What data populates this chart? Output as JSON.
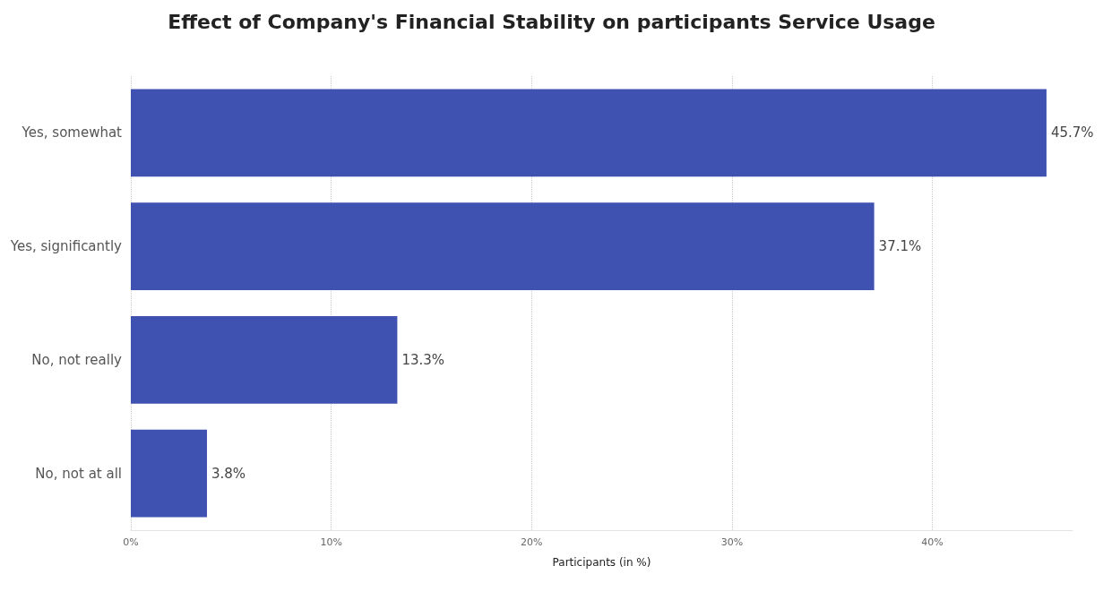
{
  "chart_data": {
    "type": "bar",
    "orientation": "horizontal",
    "title": "Effect of Company's Financial Stability on participants Service Usage",
    "xlabel": "Participants (in %)",
    "categories": [
      "Yes, somewhat",
      "Yes, significantly",
      "No, not really",
      "No, not at all"
    ],
    "values": [
      45.7,
      37.1,
      13.3,
      3.8
    ],
    "value_labels": [
      "45.7%",
      "37.1%",
      "13.3%",
      "3.8%"
    ],
    "color": "#3f51b1",
    "xlim": [
      0,
      47
    ],
    "xticks": [
      {
        "value": 0,
        "label": "0%"
      },
      {
        "value": 10,
        "label": "10%"
      },
      {
        "value": 20,
        "label": "20%"
      },
      {
        "value": 30,
        "label": "30%"
      },
      {
        "value": 40,
        "label": "40%"
      }
    ],
    "grid": "x"
  }
}
